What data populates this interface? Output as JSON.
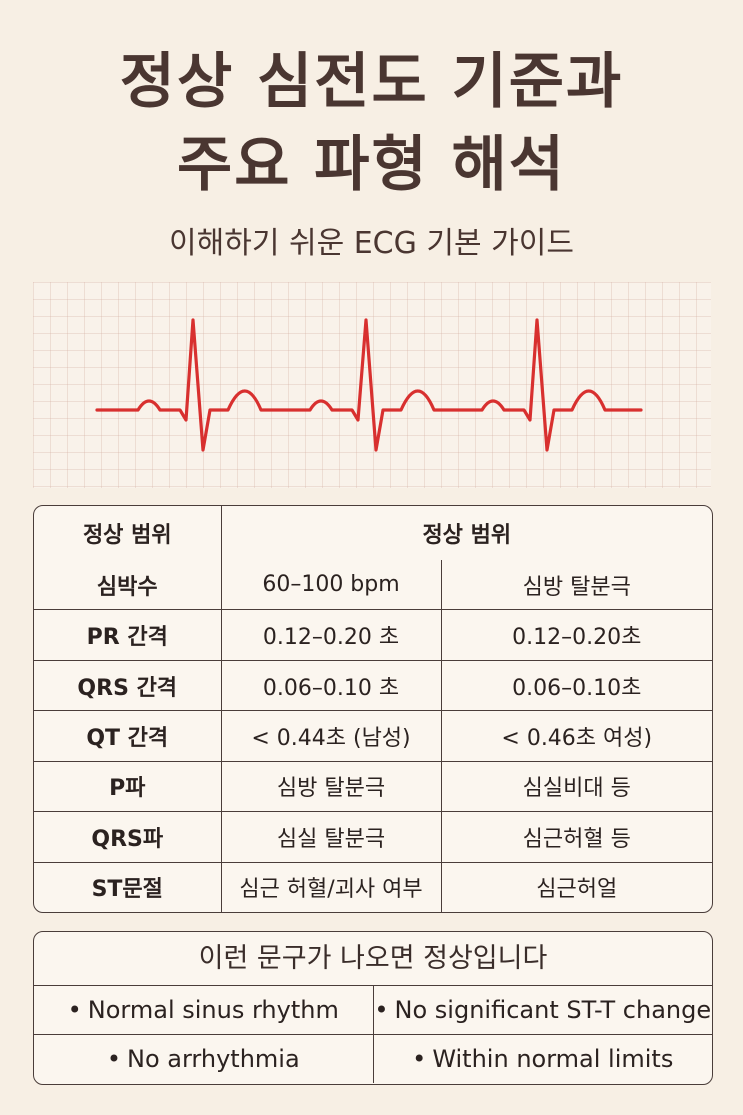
{
  "title_line1": "정상 심전도 기준과",
  "title_line2": "주요 파형 해석",
  "subtitle": "이해하기 쉬운 ECG 기본 가이드",
  "ecg_color": "#d8302f",
  "table": {
    "header_col1": "정상 범위",
    "header_col2": "정상 범위",
    "rows": [
      {
        "label": "심박수",
        "normal": "60–100 bpm",
        "abnormal": "심방 탈분극"
      },
      {
        "label": "PR 간격",
        "normal": "0.12–0.20 초",
        "abnormal": "0.12–0.20초"
      },
      {
        "label": "QRS 간격",
        "normal": "0.06–0.10 초",
        "abnormal": "0.06–0.10초"
      },
      {
        "label": "QT 간격",
        "normal": "< 0.44초 (남성)",
        "abnormal": "< 0.46초 여성)"
      },
      {
        "label": "P파",
        "normal": "심방 탈분극",
        "abnormal": "심실비대 등"
      },
      {
        "label": "QRS파",
        "normal": "심실 탈분극",
        "abnormal": "심근허혈 등"
      },
      {
        "label": "ST문절",
        "normal": "심근 허혈/괴사 여부",
        "abnormal": "심근허얼"
      }
    ]
  },
  "notes": {
    "title": "이런 문구가 나오면 정상입니다",
    "bullet": "•",
    "items": [
      "Normal sinus rhythm",
      "No significant ST-T change",
      "No arrhythmia",
      "Within normal limits"
    ]
  }
}
